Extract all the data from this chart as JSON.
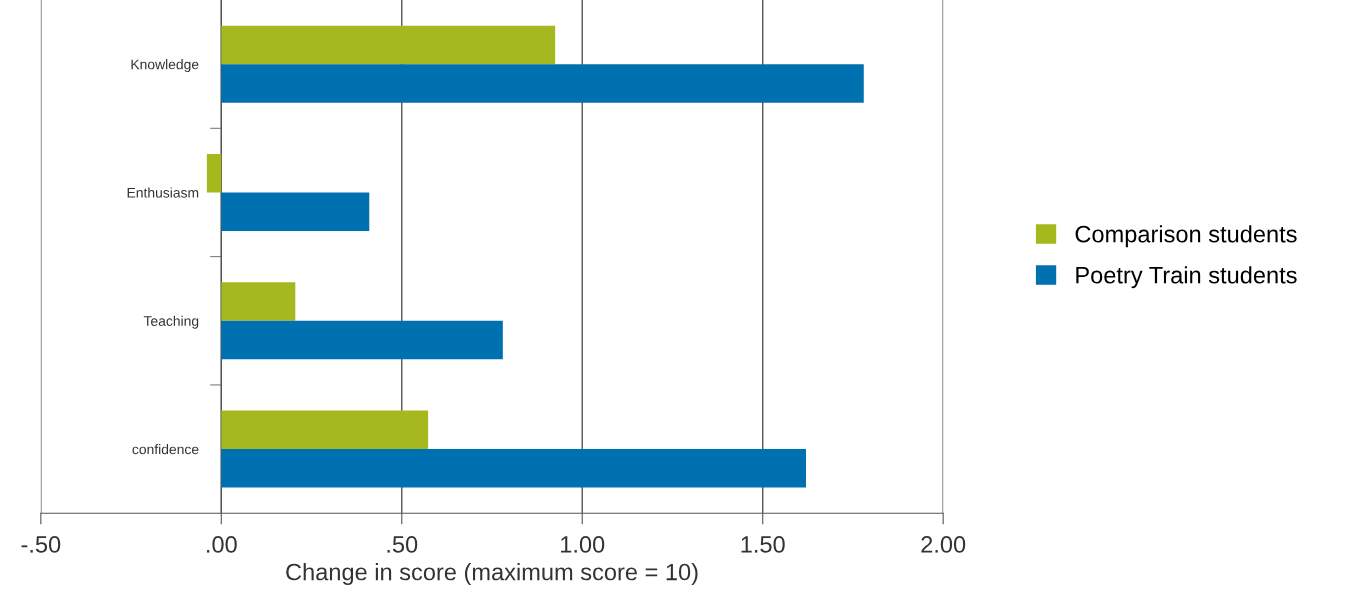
{
  "chart_data": {
    "type": "bar",
    "orientation": "horizontal",
    "categories": [
      "Knowledge",
      "Enthusiasm",
      "Teaching",
      "confidence"
    ],
    "series": [
      {
        "name": "Comparison students",
        "color": "#a5b81e",
        "values": [
          0.925,
          -0.04,
          0.205,
          0.573
        ]
      },
      {
        "name": "Poetry Train students",
        "color": "#0071b0",
        "values": [
          1.78,
          0.41,
          0.78,
          1.62
        ]
      }
    ],
    "xlim": [
      -0.5,
      2.0
    ],
    "xticks": [
      {
        "value": -0.5,
        "label": "-.50"
      },
      {
        "value": 0,
        "label": ".00"
      },
      {
        "value": 0.5,
        "label": ".50"
      },
      {
        "value": 1.0,
        "label": "1.00"
      },
      {
        "value": 1.5,
        "label": "1.50"
      },
      {
        "value": 2.0,
        "label": "2.00"
      }
    ],
    "xlabel": "Change in score (maximum score = 10)",
    "grid": "x",
    "legend": "right"
  }
}
